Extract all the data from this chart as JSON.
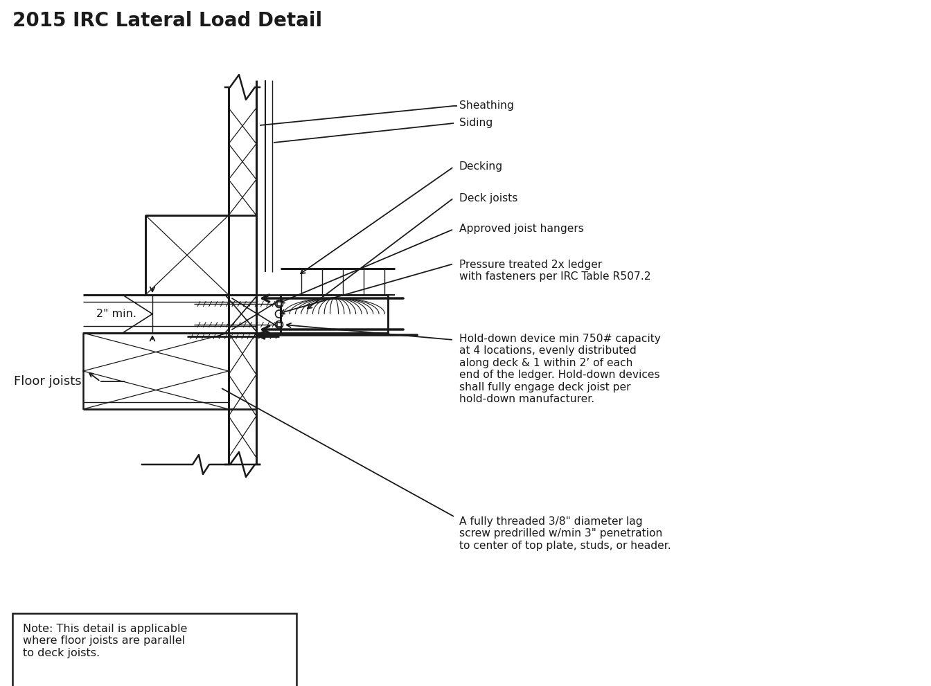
{
  "title": "2015 IRC Lateral Load Detail",
  "title_fontsize": 20,
  "title_fontweight": "bold",
  "bg": "#ffffff",
  "lc": "#1a1a1a",
  "note": "Note: This detail is applicable\nwhere floor joists are parallel\nto deck joists.",
  "lbl_sheathing": "Sheathing",
  "lbl_siding": "Siding",
  "lbl_decking": "Decking",
  "lbl_deck_joists": "Deck joists",
  "lbl_joist_hangers": "Approved joist hangers",
  "lbl_pressure": "Pressure treated 2x ledger\nwith fasteners per IRC Table R507.2",
  "lbl_holddown": "Hold-down device min 750# capacity\nat 4 locations, evenly distributed\nalong deck & 1 within 2’ of each\nend of the ledger. Hold-down devices\nshall fully engage deck joist per\nhold-down manufacturer.",
  "lbl_lagscrew": "A fully threaded 3/8\" diameter lag\nscrew predrilled w/min 3\" penetration\nto center of top plate, studs, or header.",
  "lbl_floor_joists": "Floor joists",
  "lbl_dim": "2\" min."
}
